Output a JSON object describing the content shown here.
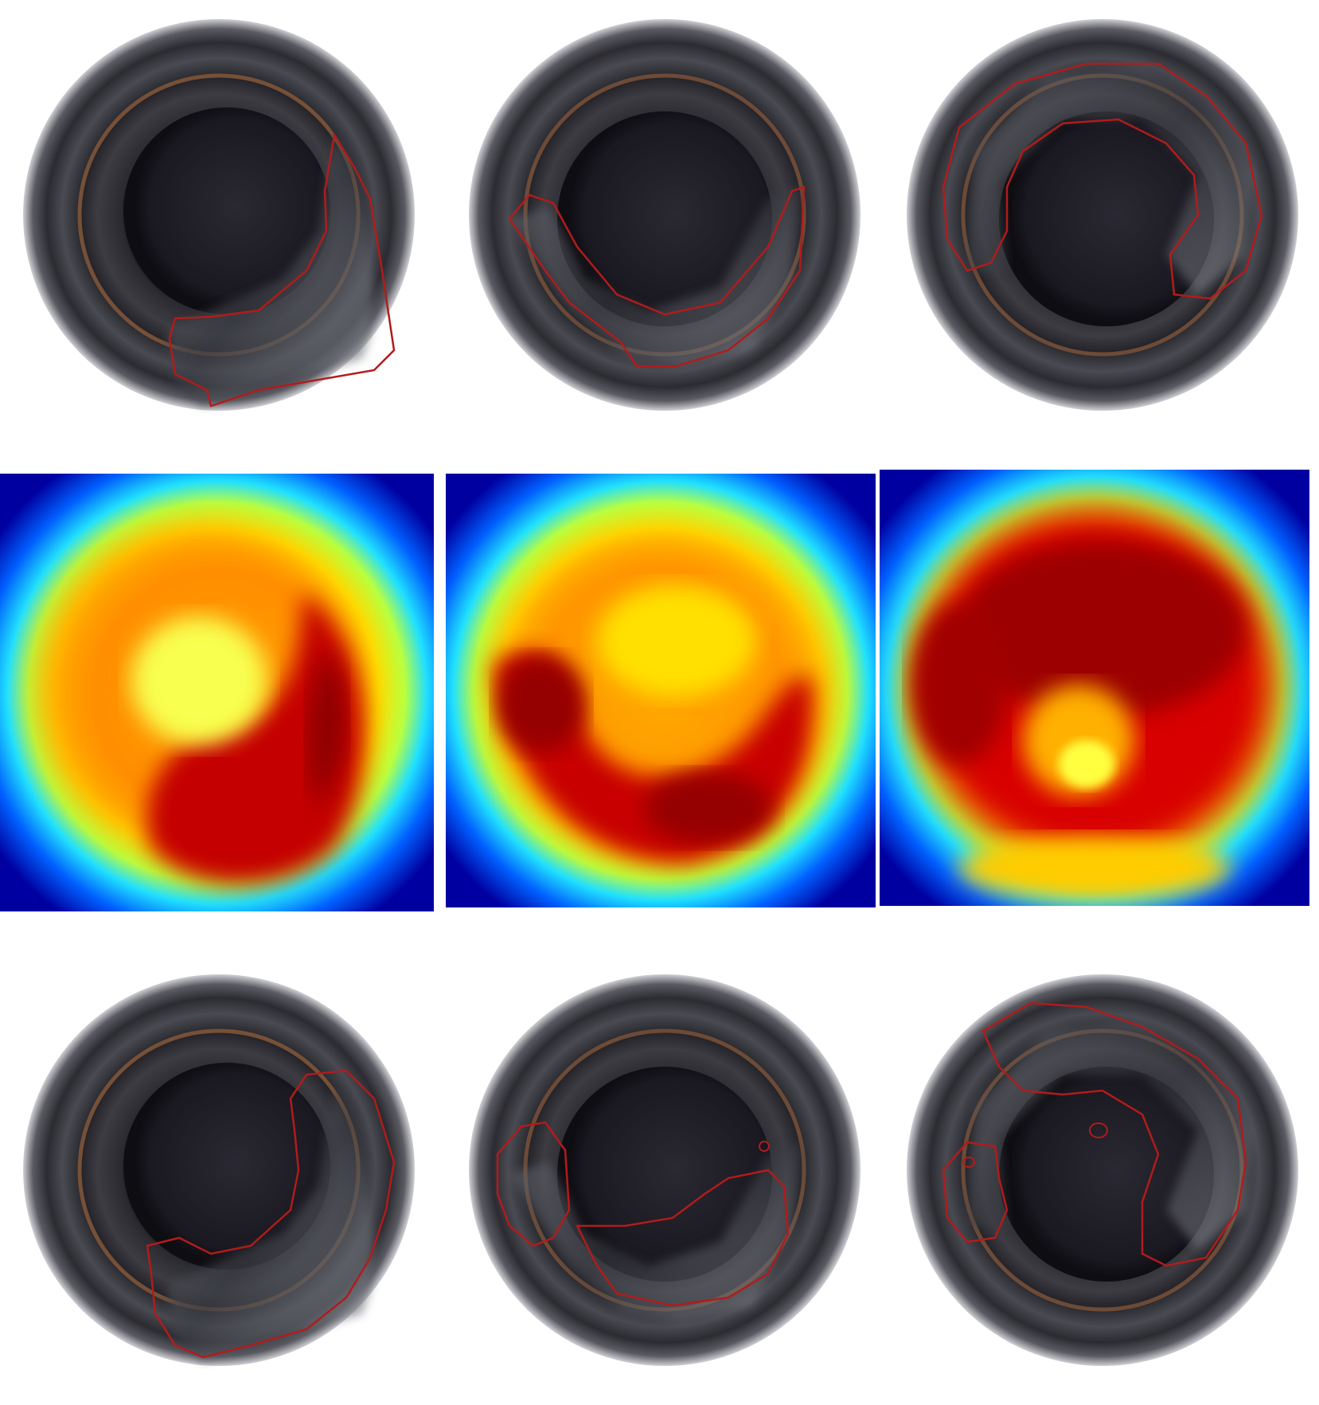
{
  "figure": {
    "rows": [
      {
        "kind": "ground-truth-outline",
        "outline_color": "#b01c1c",
        "panels": [
          "bottle-1",
          "bottle-2",
          "bottle-3"
        ]
      },
      {
        "kind": "anomaly-heatmap",
        "colormap": [
          "#00008f",
          "#0050ff",
          "#00e0ff",
          "#b0ff40",
          "#ffff00",
          "#ffa000",
          "#ff2a00",
          "#b00000"
        ],
        "panels": [
          "bottle-1",
          "bottle-2",
          "bottle-3"
        ]
      },
      {
        "kind": "predicted-outline",
        "outline_color": "#b01c1c",
        "panels": [
          "bottle-1",
          "bottle-2",
          "bottle-3"
        ]
      }
    ]
  }
}
